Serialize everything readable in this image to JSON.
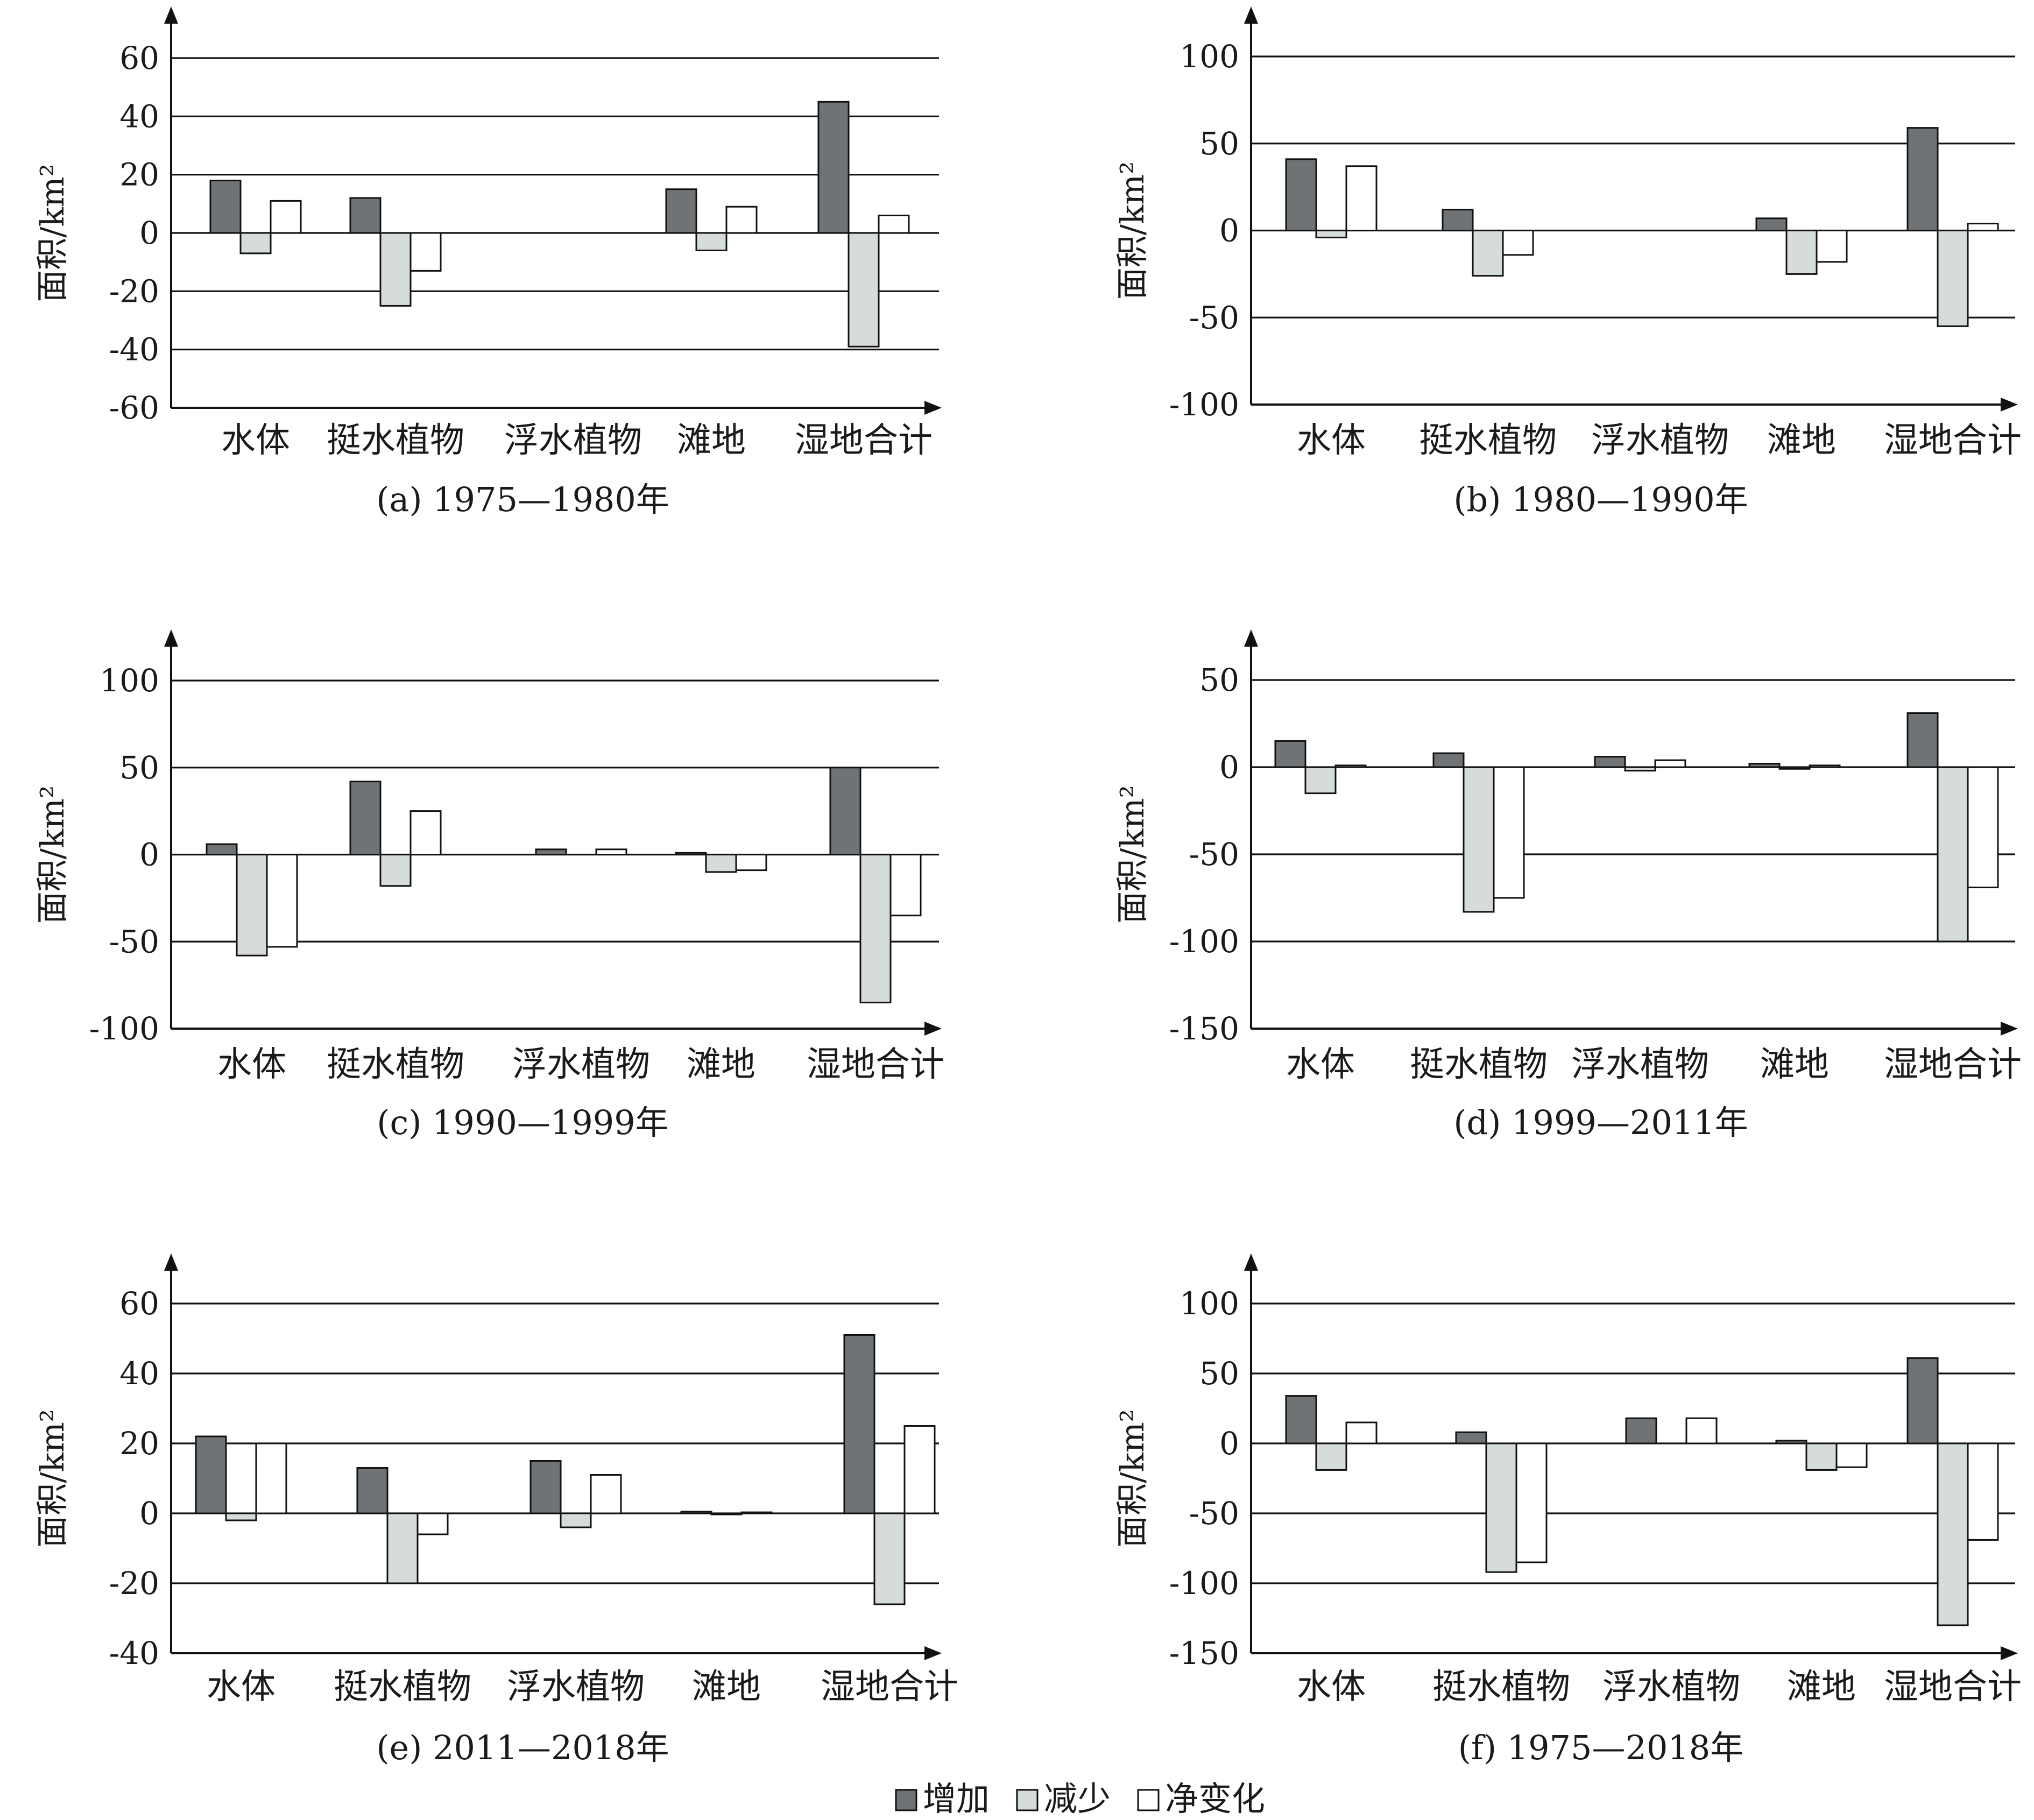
{
  "chart_data": [
    {
      "type": "bar",
      "caption": "(a) 1975—1980年",
      "ylabel": "面积/km²",
      "categories": [
        "水体",
        "挺水植物",
        "浮水植物",
        "滩地",
        "湿地合计"
      ],
      "ylim": [
        -60,
        60
      ],
      "yticks": [
        -60,
        -40,
        -20,
        0,
        20,
        40,
        60
      ],
      "series": [
        {
          "name": "增加",
          "values": [
            18,
            12,
            0,
            15,
            45
          ]
        },
        {
          "name": "减少",
          "values": [
            -7,
            -25,
            0,
            -6,
            -39
          ]
        },
        {
          "name": "净变化",
          "values": [
            11,
            -13,
            0,
            9,
            6
          ]
        }
      ]
    },
    {
      "type": "bar",
      "caption": "(b) 1980—1990年",
      "ylabel": "面积/km²",
      "categories": [
        "水体",
        "挺水植物",
        "浮水植物",
        "滩地",
        "湿地合计"
      ],
      "ylim": [
        -100,
        100
      ],
      "yticks": [
        -100,
        -50,
        0,
        50,
        100
      ],
      "series": [
        {
          "name": "增加",
          "values": [
            41,
            12,
            0,
            7,
            59
          ]
        },
        {
          "name": "减少",
          "values": [
            -4,
            -26,
            0,
            -25,
            -55
          ]
        },
        {
          "name": "净变化",
          "values": [
            37,
            -14,
            0,
            -18,
            4
          ]
        }
      ]
    },
    {
      "type": "bar",
      "caption": "(c) 1990—1999年",
      "ylabel": "面积/km²",
      "categories": [
        "水体",
        "挺水植物",
        "浮水植物",
        "滩地",
        "湿地合计"
      ],
      "ylim": [
        -100,
        100
      ],
      "yticks": [
        -100,
        -50,
        0,
        50,
        100
      ],
      "series": [
        {
          "name": "增加",
          "values": [
            6,
            42,
            3,
            1,
            50
          ]
        },
        {
          "name": "减少",
          "values": [
            -58,
            -18,
            0,
            -10,
            -85
          ]
        },
        {
          "name": "净变化",
          "values": [
            -53,
            25,
            3,
            -9,
            -35
          ]
        }
      ]
    },
    {
      "type": "bar",
      "caption": "(d) 1999—2011年",
      "ylabel": "面积/km²",
      "categories": [
        "水体",
        "挺水植物",
        "浮水植物",
        "滩地",
        "湿地合计"
      ],
      "ylim": [
        -150,
        50
      ],
      "yticks": [
        -150,
        -100,
        -50,
        0,
        50
      ],
      "series": [
        {
          "name": "增加",
          "values": [
            15,
            8,
            6,
            2,
            31
          ]
        },
        {
          "name": "减少",
          "values": [
            -15,
            -83,
            -2,
            -1,
            -100
          ]
        },
        {
          "name": "净变化",
          "values": [
            1,
            -75,
            4,
            1,
            -69
          ]
        }
      ]
    },
    {
      "type": "bar",
      "caption": "(e) 2011—2018年",
      "ylabel": "面积/km²",
      "categories": [
        "水体",
        "挺水植物",
        "浮水植物",
        "滩地",
        "湿地合计"
      ],
      "ylim": [
        -40,
        60
      ],
      "yticks": [
        -40,
        -20,
        0,
        20,
        40,
        60
      ],
      "series": [
        {
          "name": "增加",
          "values": [
            22,
            13,
            15,
            0.5,
            51
          ]
        },
        {
          "name": "减少",
          "values": [
            -2,
            -20,
            -4,
            -0.2,
            -26
          ]
        },
        {
          "name": "净变化",
          "values": [
            20,
            -6,
            11,
            0.3,
            25
          ]
        }
      ]
    },
    {
      "type": "bar",
      "caption": "(f) 1975—2018年",
      "ylabel": "面积/km²",
      "categories": [
        "水体",
        "挺水植物",
        "浮水植物",
        "滩地",
        "湿地合计"
      ],
      "ylim": [
        -150,
        100
      ],
      "yticks": [
        -150,
        -100,
        -50,
        0,
        50,
        100
      ],
      "series": [
        {
          "name": "增加",
          "values": [
            34,
            8,
            18,
            2,
            61
          ]
        },
        {
          "name": "减少",
          "values": [
            -19,
            -92,
            0,
            -19,
            -130
          ]
        },
        {
          "name": "净变化",
          "values": [
            15,
            -85,
            18,
            -17,
            -69
          ]
        }
      ]
    }
  ],
  "legend": [
    {
      "name": "增加",
      "color": "#6f7376"
    },
    {
      "name": "减少",
      "color": "#d6dcda"
    },
    {
      "name": "净变化",
      "color": "#ffffff"
    }
  ]
}
